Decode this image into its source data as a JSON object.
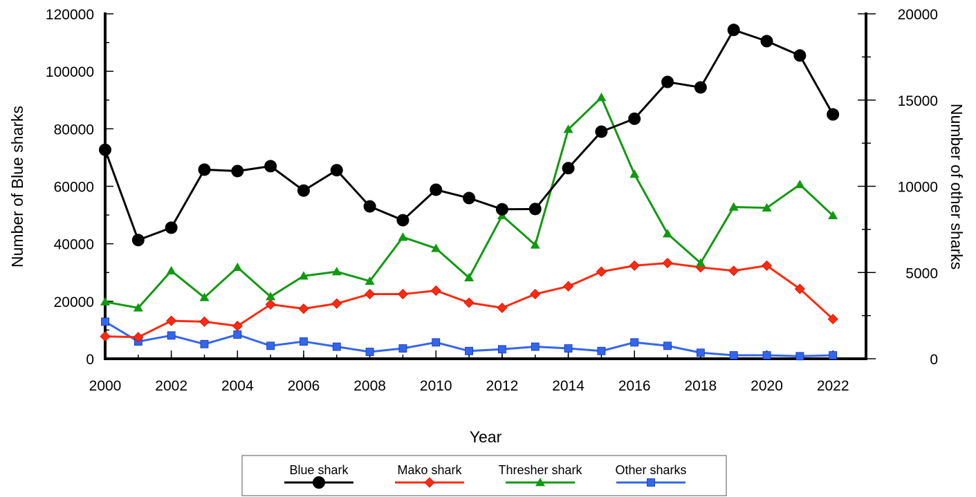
{
  "chart_data": {
    "type": "line",
    "xlabel": "Year",
    "ylabel_left": "Number of Blue sharks",
    "ylabel_right": "Number of other sharks",
    "x": [
      2000,
      2001,
      2002,
      2003,
      2004,
      2005,
      2006,
      2007,
      2008,
      2009,
      2010,
      2011,
      2012,
      2013,
      2014,
      2015,
      2016,
      2017,
      2018,
      2019,
      2020,
      2021,
      2022
    ],
    "xlim": [
      2000,
      2023
    ],
    "x_ticks": [
      "2000",
      "2002",
      "2004",
      "2006",
      "2008",
      "2010",
      "2012",
      "2014",
      "2016",
      "2018",
      "2020",
      "2022"
    ],
    "ylim_left": [
      0,
      120000
    ],
    "y_ticks_left": [
      "0",
      "20000",
      "40000",
      "60000",
      "80000",
      "100000",
      "120000"
    ],
    "ylim_right": [
      0,
      20000
    ],
    "y_ticks_right": [
      "0",
      "5000",
      "10000",
      "15000",
      "20000"
    ],
    "grid": false,
    "legend_position": "bottom",
    "series": [
      {
        "name": "Blue shark",
        "axis": "left",
        "color": "#000000",
        "marker": "circle",
        "values": [
          72700,
          41300,
          45600,
          65800,
          65300,
          67000,
          58500,
          65600,
          53000,
          48200,
          58800,
          55900,
          52000,
          52100,
          66300,
          79000,
          83500,
          96300,
          94400,
          114400,
          110500,
          105500,
          85000
        ]
      },
      {
        "name": "Mako shark",
        "axis": "right",
        "color": "#ff2a10",
        "marker": "diamond",
        "values": [
          1300,
          1250,
          2200,
          2150,
          1900,
          3150,
          2900,
          3200,
          3750,
          3750,
          3950,
          3250,
          2950,
          3750,
          4200,
          5050,
          5400,
          5550,
          5300,
          5100,
          5400,
          4050,
          2300
        ]
      },
      {
        "name": "Thresher shark",
        "axis": "right",
        "color": "#119911",
        "marker": "triangle",
        "values": [
          3300,
          2950,
          5100,
          3550,
          5300,
          3600,
          4800,
          5050,
          4500,
          7050,
          6400,
          4700,
          8300,
          6600,
          13300,
          15150,
          10700,
          7250,
          5550,
          8800,
          8750,
          10100,
          8300
        ]
      },
      {
        "name": "Other sharks",
        "axis": "right",
        "color": "#3366ee",
        "marker": "square",
        "values": [
          2150,
          1000,
          1350,
          850,
          1400,
          750,
          1000,
          700,
          400,
          600,
          950,
          450,
          550,
          700,
          600,
          450,
          950,
          750,
          350,
          200,
          200,
          150,
          200
        ]
      }
    ]
  }
}
